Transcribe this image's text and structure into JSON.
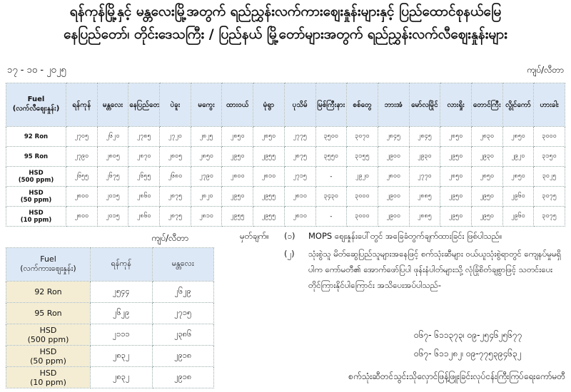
{
  "header": {
    "title_line1": "ရန်ကုန်မြို့နှင့် မန္တလေးမြို့အတွက် ရည်ညွှန်းလက်ကားဈေးနှုန်းများနှင့် ပြည်ထောင်စုနယ်မြေ",
    "title_line2": "နေပြည်တော်၊ တိုင်းဒေသကြီး / ပြည်နယ် မြို့တော်များအတွက် ရည်ညွှန်းလက်လီဈေးနှုန်းများ",
    "date": "၁၇ - ၁၀ - ၂၀၂၅",
    "unit": "ကျပ်/လီတာ"
  },
  "retail_table": {
    "columns": [
      "Fuel\n(လက်လီဈေးနှုန်း)",
      "ရန်ကုန်",
      "မန္တလေး",
      "နေပြည်တော်",
      "ပဲခူး",
      "မကွေး",
      "ထားဝယ်",
      "မုံရွာ",
      "ပုသိမ်",
      "မြစ်ကြီးနား",
      "စစ်တွေ",
      "ဘားအံ",
      "မော်လမြိုင်",
      "လားရှိုး",
      "တောင်ကြီး",
      "လွိုင်ကော်",
      "ဟားခါး"
    ],
    "rows": [
      [
        "92 Ron",
        "၂၇၀၅",
        "၂၆၂၀",
        "၂၇၈၅",
        "၂၇၂၀",
        "၂၈၂၅",
        "၂၈၅၀",
        "၂၈၅၀",
        "၂၇၇၅",
        "၃၅၀၀",
        "၃၀၇၀",
        "၂၈၄၅",
        "၂၈၄၅",
        "၂၈၅၀",
        "၂၈၃၀",
        "၂၈၅၀",
        "၃၀၀၀"
      ],
      [
        "95 Ron",
        "၂၇၉၀",
        "၂၈၀၅",
        "၂၈၇၀",
        "၂၈၀၅",
        "၂၈၅၀",
        "၂၉၅၀",
        "၂၉၅၅",
        "၂၈၇၅",
        "၃၅၅၀",
        "၃၁၅၅",
        "၂၉၀၀",
        "၂၉၃၀",
        "၂၉၅၀",
        "၂၉၃၀",
        "၂၉၂၀",
        "၃၁၅၀"
      ],
      [
        "HSD\n(500 ppm)",
        "၂၆၅၅",
        "၂၆၇၅",
        "၂၆၅၅",
        "၂၆၈၀",
        "၂၇၉၀",
        "၂၈၀၀",
        "၂၈၁၀",
        "၂၇၁၅",
        "-",
        "၂၉၂၀",
        "၂၈၀၀",
        "၂၇၇၀",
        "၂၈၅၀",
        "၂၈၅၀",
        "၂၈၅၀",
        "၃၀၂၅"
      ],
      [
        "HSD\n(50 ppm)",
        "၂၈၀၀",
        "၂၀၁၅",
        "၂၈၆၀",
        "၂၈၇၅",
        "၂၈၂၀",
        "၂၉၅၀",
        "၂၉၅၅",
        "၂၈၁၀",
        "၃၄၃၀",
        "၃၀၀၀",
        "၂၉၀၀",
        "၂၈၈၅",
        "၂၉၅၀",
        "၂၉၅၀",
        "၂၉၆၀",
        "၃၀၇၅"
      ],
      [
        "HSD\n(10 ppm)",
        "၂၈၀၀",
        "၂၀၁၅",
        "၂၈၆၀",
        "၂၈၇၅",
        "၂၈၁၀",
        "၂၉၅၅",
        "၂၉၅၅",
        "၂၈၁၀",
        "-",
        "၃၀၀၀",
        "၂၉၀၀",
        "၂၈၈၅",
        "၂၉၅၀",
        "၂၉၅၀",
        "၂၉၆၀",
        "၃၀၇၅"
      ]
    ]
  },
  "wholesale_unit": "ကျပ်/လီတာ",
  "wholesale_table": {
    "columns": [
      "Fuel\n(လက်ကားဈေးနှုန်း)",
      "ရန်ကုန်",
      "မန္တလေး"
    ],
    "rows": [
      [
        "92 Ron",
        "၂၅၄၄",
        "၂၆၂၉"
      ],
      [
        "95 Ron",
        "၂၆၂၉",
        "၂၇၁၅"
      ],
      [
        "HSD\n(500 ppm)",
        "၂၁၁၁",
        "၂၃၈၆"
      ],
      [
        "HSD\n(50 ppm)",
        "၂၈၃၂",
        "၂၉၁၈"
      ],
      [
        "HSD\n(10 ppm)",
        "၂၈၃၂",
        "၂၉၁၈"
      ]
    ]
  },
  "notes": {
    "heading": "မှတ်ချက်။",
    "items": [
      {
        "number": "(၁)",
        "text": "MOPS ဈေးနှုန်းပေါ်တွင် အခြေခံတွက်ချက်ထားခြင်း ဖြစ်ပါသည်။"
      },
      {
        "number": "(၂)",
        "text": "သုံးစွဲသူ မိတ်ဆွေပြည်သူများအနေဖြင့် စက်သုံးဆီများ ဝယ်ယူသုံးစွဲရာတွင် ကျေနပ်မှုမရှိပါက ကော်မတီ၏ အောက်ဖော်ပြပါ ဖုန်းနံပါတ်များသို့ လုံခြုံစိတ်ချစွာဖြင့် သတင်းပေးတိုင်ကြားနိုင်ပါကြောင်း အသိပေးအပ်ပါသည်-"
      }
    ],
    "phones": [
      "၀၆၇- ၆၁၁၃၇၃၊ ၀၉-၂၅၄၆၂၅၆၇၇",
      "၀၆၇- ၆၁၁၂၈၂၊ ၀၉-၇၇၅၃၉၄၆၃၂"
    ]
  },
  "footer": "စက်သုံးဆီတင်သွင်းသိုလှောင်ဖြန့်ဖြူးခြင်းလုပ်ငန်းကြီးကြပ်ရေးကော်မတီ"
}
